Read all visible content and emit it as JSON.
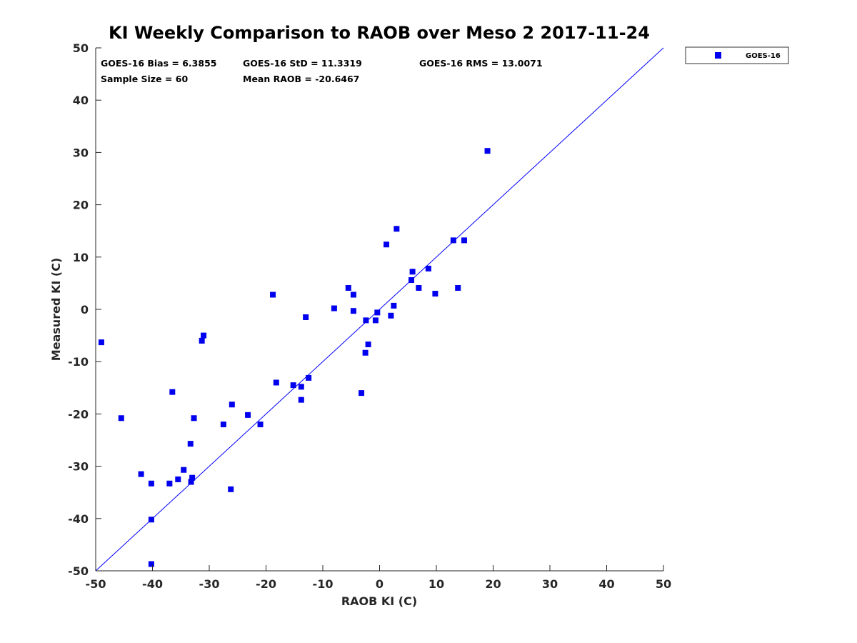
{
  "chart_data": {
    "type": "scatter",
    "title": "KI Weekly Comparison to RAOB over Meso 2 2017-11-24",
    "xlabel": "RAOB KI (C)",
    "ylabel": "Measured KI (C)",
    "xlim": [
      -50,
      50
    ],
    "ylim": [
      -50,
      50
    ],
    "xticks": [
      -50,
      -40,
      -30,
      -20,
      -10,
      0,
      10,
      20,
      30,
      40,
      50
    ],
    "yticks": [
      -50,
      -40,
      -30,
      -20,
      -10,
      0,
      10,
      20,
      30,
      40,
      50
    ],
    "grid": false,
    "legend": {
      "position": "outside-top-right",
      "entries": [
        "GOES-16"
      ]
    },
    "reference_line": {
      "from": [
        -50,
        -50
      ],
      "to": [
        50,
        50
      ],
      "color": "#0000ff"
    },
    "stats": {
      "bias": "GOES-16 Bias = 6.3855",
      "std": "GOES-16 StD = 11.3319",
      "rms": "GOES-16 RMS = 13.0071",
      "sample": "Sample Size = 60",
      "mean": "Mean RAOB = -20.6467"
    },
    "series": [
      {
        "name": "GOES-16",
        "color": "#0000ee",
        "marker": "square",
        "points": [
          [
            -49,
            -6.3
          ],
          [
            -45.5,
            -20.8
          ],
          [
            -42,
            -31.5
          ],
          [
            -40.2,
            -33.3
          ],
          [
            -40.2,
            -40.2
          ],
          [
            -40.2,
            -48.7
          ],
          [
            -37,
            -33.3
          ],
          [
            -36.5,
            -15.8
          ],
          [
            -35.5,
            -32.5
          ],
          [
            -34.5,
            -30.7
          ],
          [
            -33.3,
            -25.7
          ],
          [
            -33.2,
            -33.0
          ],
          [
            -33,
            -32.2
          ],
          [
            -32.7,
            -20.8
          ],
          [
            -31.3,
            -6.0
          ],
          [
            -31,
            -5.0
          ],
          [
            -27.5,
            -22.0
          ],
          [
            -26.2,
            -34.4
          ],
          [
            -26,
            -18.2
          ],
          [
            -23.2,
            -20.2
          ],
          [
            -21,
            -22.0
          ],
          [
            -18.8,
            2.8
          ],
          [
            -18.2,
            -14.0
          ],
          [
            -15.2,
            -14.5
          ],
          [
            -13.8,
            -14.8
          ],
          [
            -13.8,
            -17.3
          ],
          [
            -13,
            -1.5
          ],
          [
            -12.5,
            -13.1
          ],
          [
            -8,
            0.2
          ],
          [
            -5.5,
            4.1
          ],
          [
            -4.6,
            2.8
          ],
          [
            -4.6,
            -0.3
          ],
          [
            -3.2,
            -16.0
          ],
          [
            -2.5,
            -8.3
          ],
          [
            -2.4,
            -2.1
          ],
          [
            -2,
            -6.7
          ],
          [
            -0.7,
            -2.1
          ],
          [
            -0.4,
            -0.6
          ],
          [
            1.2,
            12.4
          ],
          [
            2,
            -1.2
          ],
          [
            2.5,
            0.7
          ],
          [
            3,
            15.4
          ],
          [
            5.6,
            5.6
          ],
          [
            5.8,
            7.2
          ],
          [
            6.9,
            4.1
          ],
          [
            8.6,
            7.8
          ],
          [
            9.8,
            3.0
          ],
          [
            13,
            13.2
          ],
          [
            13.8,
            4.1
          ],
          [
            14.9,
            13.2
          ],
          [
            19,
            30.3
          ]
        ]
      }
    ]
  }
}
